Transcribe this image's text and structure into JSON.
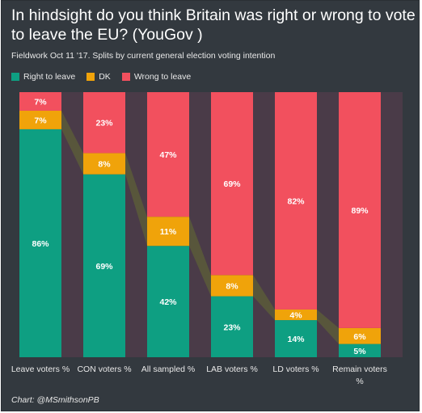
{
  "chart_data": {
    "type": "bar",
    "stacked": true,
    "title": "In hindsight do you think Britain was right or wrong to vote to leave the EU? (YouGov )",
    "subtitle": "Fieldwork Oct 11 '17. Splits by current general election voting intention",
    "categories": [
      [
        "Leave voters %"
      ],
      [
        "CON voters %"
      ],
      [
        "All sampled %"
      ],
      [
        "LAB voters %"
      ],
      [
        "LD voters %"
      ],
      [
        "Remain voters",
        "%"
      ]
    ],
    "series": [
      {
        "name": "Right to leave",
        "color": "#0e9f82",
        "values": [
          86,
          69,
          42,
          23,
          14,
          5
        ],
        "labels": [
          "86%",
          "69%",
          "42%",
          "23%",
          "14%",
          "5%"
        ]
      },
      {
        "name": "DK",
        "color": "#f0a30a",
        "values": [
          7,
          8,
          11,
          8,
          4,
          6
        ],
        "labels": [
          "7%",
          "8%",
          "11%",
          "8%",
          "4%",
          "6%"
        ]
      },
      {
        "name": "Wrong to leave",
        "color": "#f2505e",
        "values": [
          7,
          23,
          47,
          69,
          82,
          89
        ],
        "labels": [
          "7%",
          "23%",
          "47%",
          "69%",
          "82%",
          "89%"
        ]
      }
    ],
    "ylim": [
      0,
      100
    ],
    "grid": false,
    "legend_position": "top-left"
  },
  "colors": {
    "background": "#33393f",
    "column_band": "#4a3b48",
    "connector": "#5a5a3a"
  },
  "credit": "Chart: @MSmithsonPB"
}
